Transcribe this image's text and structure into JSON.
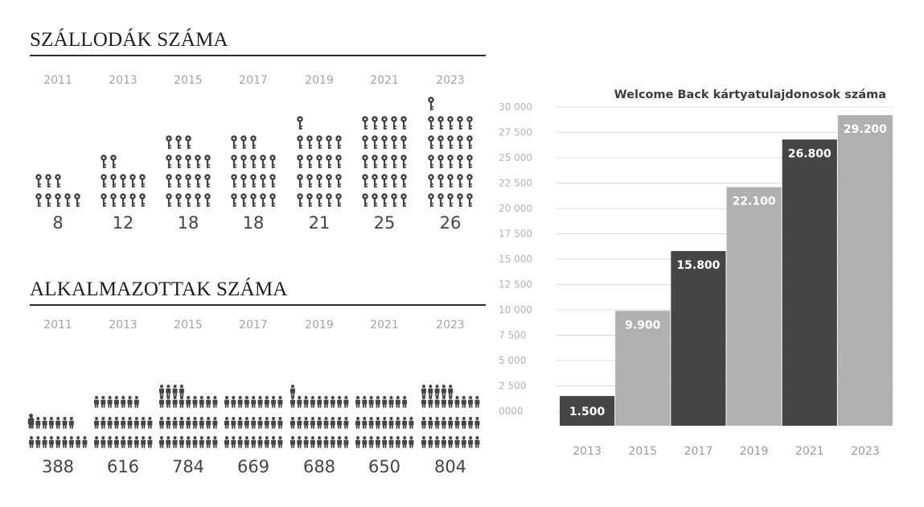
{
  "hotels": {
    "title": "SZÁLLODÁK SZÁMA",
    "icon": "key-icon",
    "icon_color": "#454545",
    "years": [
      "2011",
      "2013",
      "2015",
      "2017",
      "2019",
      "2021",
      "2023"
    ],
    "values": [
      "8",
      "12",
      "18",
      "18",
      "21",
      "25",
      "26"
    ],
    "counts": [
      8,
      12,
      18,
      18,
      21,
      25,
      26
    ]
  },
  "employees": {
    "title": "ALKALMAZOTTAK SZÁMA",
    "icon": "person-icon",
    "icon_color": "#454545",
    "years": [
      "2011",
      "2013",
      "2015",
      "2017",
      "2019",
      "2021",
      "2023"
    ],
    "values": [
      "388",
      "616",
      "784",
      "669",
      "688",
      "650",
      "804"
    ],
    "counts": [
      388,
      616,
      784,
      669,
      688,
      650,
      804
    ]
  },
  "chart_data": {
    "type": "bar",
    "title": "Welcome Back kártyatulajdonosok száma",
    "categories": [
      "2013",
      "2015",
      "2017",
      "2019",
      "2021",
      "2023"
    ],
    "values": [
      1500,
      9900,
      15800,
      22100,
      26800,
      29200
    ],
    "value_labels": [
      "1.500",
      "9.900",
      "15.800",
      "22.100",
      "26.800",
      "29.200"
    ],
    "ylim": [
      0,
      30000
    ],
    "yticks": [
      0,
      2500,
      5000,
      7500,
      10000,
      12500,
      15000,
      17500,
      20000,
      22500,
      25000,
      27500,
      30000
    ],
    "ytick_labels": [
      "0000",
      "2 500",
      "5 000",
      "7 500",
      "10 000",
      "12 500",
      "15 000",
      "17 500",
      "20 000",
      "22 500",
      "25 000",
      "27 500",
      "30 000"
    ],
    "xlabel": "",
    "ylabel": "",
    "grid": true,
    "bar_colors": [
      "#454545",
      "#b0b0b0",
      "#454545",
      "#b0b0b0",
      "#454545",
      "#b0b0b0"
    ],
    "grid_color": "#dcdcdc"
  }
}
